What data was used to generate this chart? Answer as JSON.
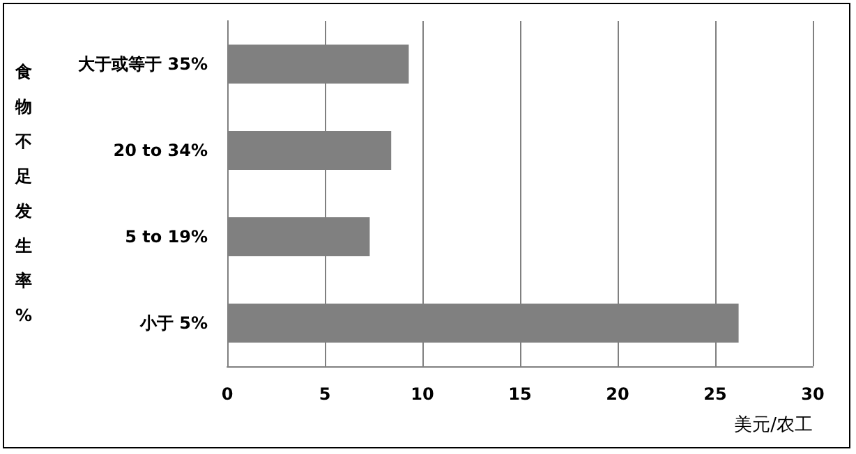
{
  "chart_data": {
    "type": "bar",
    "orientation": "horizontal",
    "ylabel": "食物不足发生率%",
    "xlabel": "美元/农工",
    "categories": [
      "大于或等于 35%",
      "20 to 34%",
      "5 to 19%",
      "小于 5%"
    ],
    "values": [
      9.3,
      8.4,
      7.3,
      26.2
    ],
    "color": "#808080",
    "xlim": [
      0,
      30
    ],
    "xticks": [
      0,
      5,
      10,
      15,
      20,
      25,
      30
    ],
    "grid": "x"
  }
}
